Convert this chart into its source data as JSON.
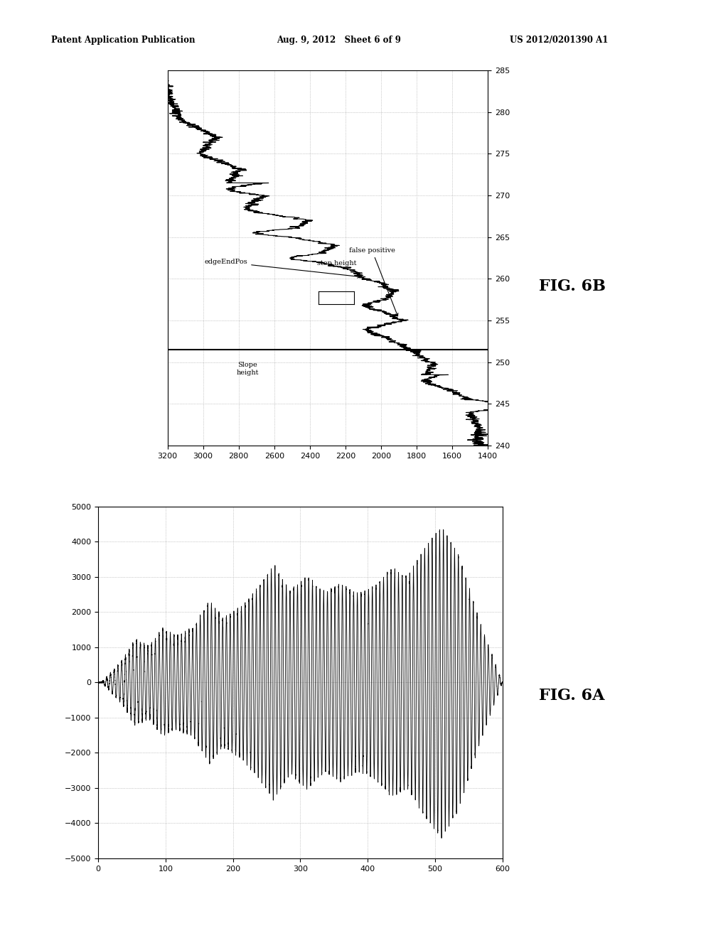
{
  "header_left": "Patent Application Publication",
  "header_center": "Aug. 9, 2012   Sheet 6 of 9",
  "header_right": "US 2012/0201390 A1",
  "fig6b": {
    "label": "FIG. 6B",
    "xaxis_range": [
      1400,
      3200
    ],
    "yaxis_range": [
      240,
      285
    ],
    "xaxis_ticks": [
      1400,
      1600,
      1800,
      2000,
      2200,
      2400,
      2600,
      2800,
      3000,
      3200
    ],
    "yaxis_ticks": [
      240,
      245,
      250,
      255,
      260,
      265,
      270,
      275,
      280,
      285
    ],
    "annotation_edgeEndPos": "edgeEndPos",
    "annotation_stepHeight": "step height",
    "annotation_falsePositive": "false positive",
    "annotation_slopeHeight": "Slope\nheight"
  },
  "fig6a": {
    "label": "FIG. 6A",
    "xlim": [
      0,
      600
    ],
    "ylim": [
      -5000,
      5000
    ],
    "xticks": [
      0,
      100,
      200,
      300,
      400,
      500,
      600
    ],
    "yticks": [
      -5000,
      -4000,
      -3000,
      -2000,
      -1000,
      0,
      1000,
      2000,
      3000,
      4000,
      5000
    ]
  },
  "background_color": "#ffffff",
  "line_color": "#000000",
  "grid_color": "#888888",
  "font_size": 8
}
